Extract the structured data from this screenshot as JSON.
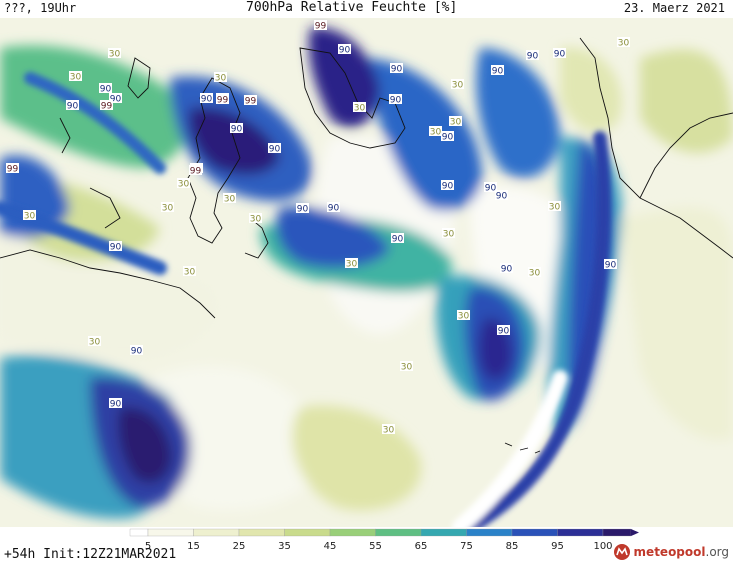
{
  "header": {
    "left": "???, 19Uhr",
    "title": "700hPa Relative Feuchte [%]",
    "date": "23. Maerz 2021"
  },
  "footer": {
    "init": "+54h  Init:12Z21MAR2021",
    "logo_name": "meteopool",
    "logo_tld": ".org"
  },
  "colorbar": {
    "ticks": [
      "5",
      "15",
      "25",
      "35",
      "45",
      "55",
      "65",
      "75",
      "85",
      "95",
      "100"
    ],
    "colors": [
      "#ffffff",
      "#f7f7ea",
      "#eef0cf",
      "#e1e6ae",
      "#c9db8c",
      "#99cf79",
      "#5fbf83",
      "#35a8b0",
      "#2b82c8",
      "#2a52b8",
      "#2c2f96",
      "#2b1a6a"
    ]
  },
  "map_labels": [
    {
      "text": "30"
    },
    {
      "text": "99"
    },
    {
      "text": "90"
    },
    {
      "text": "90"
    },
    {
      "text": "90"
    },
    {
      "text": "30"
    },
    {
      "text": "30"
    },
    {
      "text": "30"
    },
    {
      "text": "90"
    },
    {
      "text": "99"
    },
    {
      "text": "90"
    },
    {
      "text": "99"
    },
    {
      "text": "90"
    },
    {
      "text": "90"
    },
    {
      "text": "99"
    },
    {
      "text": "90"
    },
    {
      "text": "99"
    },
    {
      "text": "90"
    },
    {
      "text": "90"
    },
    {
      "text": "30"
    },
    {
      "text": "30"
    },
    {
      "text": "30"
    },
    {
      "text": "30"
    },
    {
      "text": "90"
    },
    {
      "text": "90"
    },
    {
      "text": "90"
    },
    {
      "text": "30"
    },
    {
      "text": "30"
    },
    {
      "text": "30"
    },
    {
      "text": "90"
    },
    {
      "text": "30"
    },
    {
      "text": "90"
    },
    {
      "text": "30"
    },
    {
      "text": "90"
    },
    {
      "text": "30"
    },
    {
      "text": "90"
    },
    {
      "text": "90"
    },
    {
      "text": "90"
    },
    {
      "text": "30"
    },
    {
      "text": "99"
    },
    {
      "text": "99"
    },
    {
      "text": "90"
    },
    {
      "text": "90"
    },
    {
      "text": "30"
    },
    {
      "text": "30"
    },
    {
      "text": "30"
    },
    {
      "text": "30"
    },
    {
      "text": "90"
    },
    {
      "text": "90"
    },
    {
      "text": "30"
    },
    {
      "text": "90"
    },
    {
      "text": "30"
    },
    {
      "text": "90"
    },
    {
      "text": "30"
    },
    {
      "text": "90"
    },
    {
      "text": "30"
    }
  ]
}
